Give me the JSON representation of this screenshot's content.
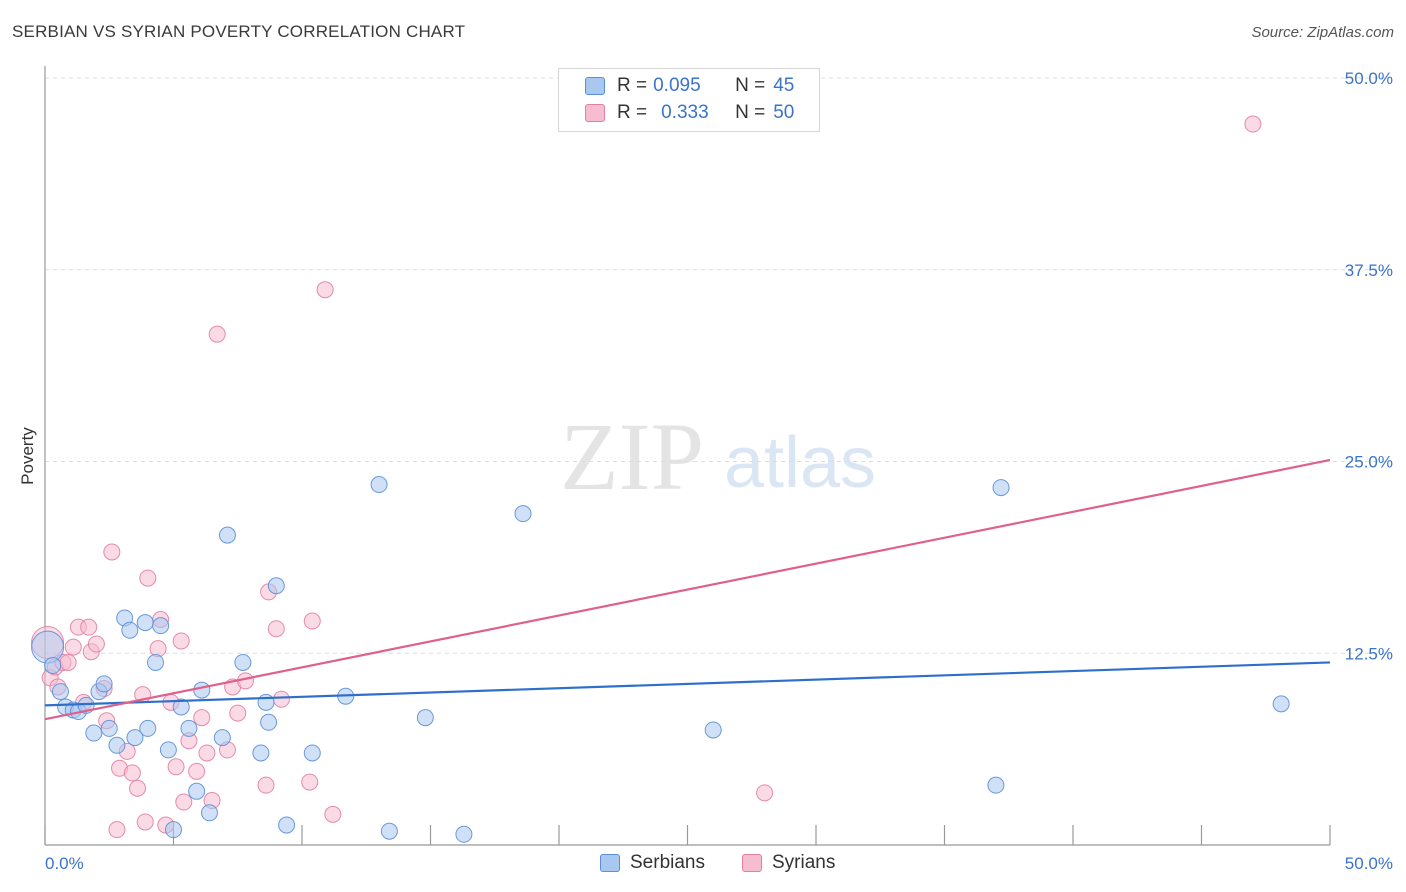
{
  "title": "SERBIAN VS SYRIAN POVERTY CORRELATION CHART",
  "source": "Source: ZipAtlas.com",
  "watermark": {
    "zip": "ZIP",
    "atlas": "atlas"
  },
  "legend": {
    "rows": [
      {
        "r_label": "R =",
        "r_value": "0.095",
        "n_label": "N =",
        "n_value": "45"
      },
      {
        "r_label": "R =",
        "r_value": "0.333",
        "n_label": "N =",
        "n_value": "50"
      }
    ]
  },
  "bottom_legend": [
    "Serbians",
    "Syrians"
  ],
  "colors": {
    "serbians_fill": "#a9c8f0",
    "serbians_stroke": "#5b8fd6",
    "serbians_line": "#2f6fcc",
    "syrians_fill": "#f6bcd0",
    "syrians_stroke": "#e27fa2",
    "syrians_line": "#e0608c",
    "tick_label": "#3a73c9"
  },
  "chart_data": {
    "type": "scatter",
    "title": "SERBIAN VS SYRIAN POVERTY CORRELATION CHART",
    "xlabel": "",
    "ylabel": "Poverty",
    "xlim": [
      0,
      50
    ],
    "ylim": [
      0,
      50
    ],
    "x_tick_labels": [
      "0.0%",
      "50.0%"
    ],
    "y_ticks": [
      12.5,
      25,
      37.5,
      50
    ],
    "y_tick_labels": [
      "12.5%",
      "25.0%",
      "37.5%",
      "50.0%"
    ],
    "grid": true,
    "series": [
      {
        "name": "Serbians",
        "r": 0.095,
        "n": 45,
        "trend": {
          "x": [
            0,
            50
          ],
          "y": [
            9.1,
            11.9
          ]
        },
        "points": [
          {
            "x": 0.1,
            "y": 12.9,
            "size": "large"
          },
          {
            "x": 0.3,
            "y": 11.7
          },
          {
            "x": 0.6,
            "y": 10.0
          },
          {
            "x": 0.8,
            "y": 9.0
          },
          {
            "x": 1.1,
            "y": 8.8
          },
          {
            "x": 1.3,
            "y": 8.7
          },
          {
            "x": 1.6,
            "y": 9.1
          },
          {
            "x": 1.9,
            "y": 7.3
          },
          {
            "x": 2.1,
            "y": 10.0
          },
          {
            "x": 2.3,
            "y": 10.5
          },
          {
            "x": 2.5,
            "y": 7.6
          },
          {
            "x": 2.8,
            "y": 6.5
          },
          {
            "x": 3.1,
            "y": 14.8
          },
          {
            "x": 3.3,
            "y": 14.0
          },
          {
            "x": 3.5,
            "y": 7.0
          },
          {
            "x": 3.9,
            "y": 14.5
          },
          {
            "x": 4.0,
            "y": 7.6
          },
          {
            "x": 4.3,
            "y": 11.9
          },
          {
            "x": 4.5,
            "y": 14.3
          },
          {
            "x": 4.8,
            "y": 6.2
          },
          {
            "x": 5.0,
            "y": 1.0
          },
          {
            "x": 5.3,
            "y": 9.0
          },
          {
            "x": 5.6,
            "y": 7.6
          },
          {
            "x": 5.9,
            "y": 3.5
          },
          {
            "x": 6.1,
            "y": 10.1
          },
          {
            "x": 6.4,
            "y": 2.1
          },
          {
            "x": 6.9,
            "y": 7.0
          },
          {
            "x": 7.1,
            "y": 20.2
          },
          {
            "x": 7.7,
            "y": 11.9
          },
          {
            "x": 8.4,
            "y": 6.0
          },
          {
            "x": 8.6,
            "y": 9.3
          },
          {
            "x": 8.7,
            "y": 8.0
          },
          {
            "x": 9.0,
            "y": 16.9
          },
          {
            "x": 9.4,
            "y": 1.3
          },
          {
            "x": 10.4,
            "y": 6.0
          },
          {
            "x": 11.7,
            "y": 9.7
          },
          {
            "x": 13.0,
            "y": 23.5
          },
          {
            "x": 13.4,
            "y": 0.9
          },
          {
            "x": 14.8,
            "y": 8.3
          },
          {
            "x": 16.3,
            "y": 0.7
          },
          {
            "x": 18.6,
            "y": 21.6
          },
          {
            "x": 26.0,
            "y": 7.5
          },
          {
            "x": 37.0,
            "y": 3.9
          },
          {
            "x": 37.2,
            "y": 23.3
          },
          {
            "x": 48.1,
            "y": 9.2
          }
        ]
      },
      {
        "name": "Syrians",
        "r": 0.333,
        "n": 50,
        "trend": {
          "x": [
            0,
            50
          ],
          "y": [
            8.2,
            25.1
          ]
        },
        "points": [
          {
            "x": 0.1,
            "y": 13.2,
            "size": "large"
          },
          {
            "x": 0.2,
            "y": 10.9
          },
          {
            "x": 0.4,
            "y": 11.6
          },
          {
            "x": 0.5,
            "y": 10.3
          },
          {
            "x": 0.7,
            "y": 11.9
          },
          {
            "x": 0.9,
            "y": 11.9
          },
          {
            "x": 1.1,
            "y": 12.9
          },
          {
            "x": 1.3,
            "y": 14.2
          },
          {
            "x": 1.5,
            "y": 9.3
          },
          {
            "x": 1.7,
            "y": 14.2
          },
          {
            "x": 1.8,
            "y": 12.6
          },
          {
            "x": 2.0,
            "y": 13.1
          },
          {
            "x": 2.3,
            "y": 10.2
          },
          {
            "x": 2.4,
            "y": 8.1
          },
          {
            "x": 2.6,
            "y": 19.1
          },
          {
            "x": 2.8,
            "y": 1.0
          },
          {
            "x": 2.9,
            "y": 5.0
          },
          {
            "x": 3.2,
            "y": 6.1
          },
          {
            "x": 3.4,
            "y": 4.7
          },
          {
            "x": 3.6,
            "y": 3.7
          },
          {
            "x": 3.8,
            "y": 9.8
          },
          {
            "x": 3.9,
            "y": 1.5
          },
          {
            "x": 4.0,
            "y": 17.4
          },
          {
            "x": 4.4,
            "y": 12.8
          },
          {
            "x": 4.5,
            "y": 14.7
          },
          {
            "x": 4.7,
            "y": 1.3
          },
          {
            "x": 4.9,
            "y": 9.3
          },
          {
            "x": 5.1,
            "y": 5.1
          },
          {
            "x": 5.3,
            "y": 13.3
          },
          {
            "x": 5.4,
            "y": 2.8
          },
          {
            "x": 5.6,
            "y": 6.8
          },
          {
            "x": 5.9,
            "y": 4.8
          },
          {
            "x": 6.1,
            "y": 8.3
          },
          {
            "x": 6.3,
            "y": 6.0
          },
          {
            "x": 6.5,
            "y": 2.9
          },
          {
            "x": 6.7,
            "y": 33.3
          },
          {
            "x": 7.1,
            "y": 6.2
          },
          {
            "x": 7.3,
            "y": 10.3
          },
          {
            "x": 7.5,
            "y": 8.6
          },
          {
            "x": 7.8,
            "y": 10.7
          },
          {
            "x": 8.6,
            "y": 3.9
          },
          {
            "x": 8.7,
            "y": 16.5
          },
          {
            "x": 9.0,
            "y": 14.1
          },
          {
            "x": 9.2,
            "y": 9.5
          },
          {
            "x": 10.3,
            "y": 4.1
          },
          {
            "x": 10.4,
            "y": 14.6
          },
          {
            "x": 10.9,
            "y": 36.2
          },
          {
            "x": 11.2,
            "y": 2.0
          },
          {
            "x": 28.0,
            "y": 3.4
          },
          {
            "x": 47.0,
            "y": 47.0
          }
        ]
      }
    ]
  }
}
